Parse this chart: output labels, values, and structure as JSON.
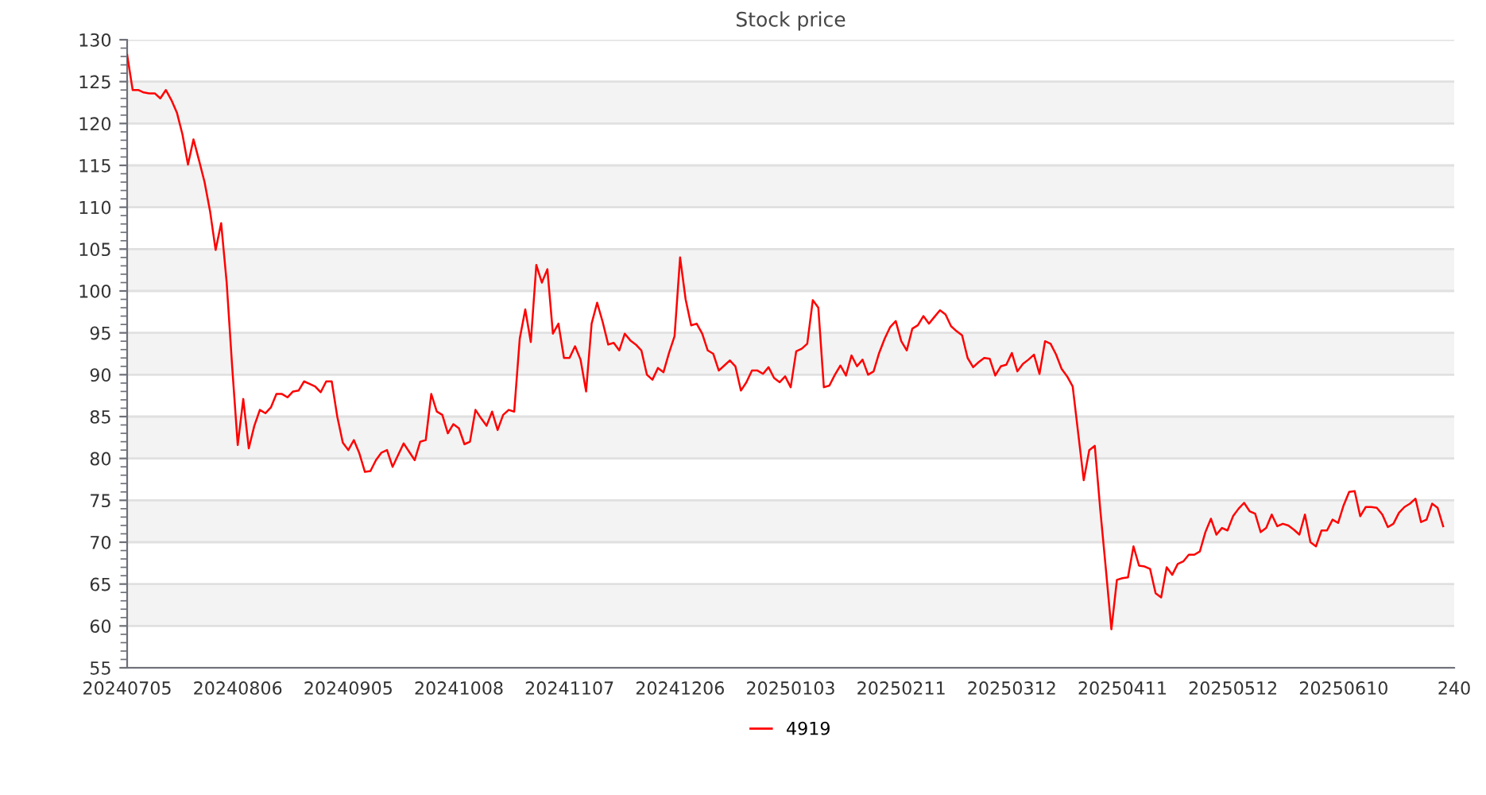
{
  "chart_data": {
    "type": "line",
    "title": "Stock price",
    "categories": [
      "20240705",
      null,
      null,
      null,
      null,
      null,
      null,
      null,
      null,
      null,
      null,
      null,
      null,
      null,
      null,
      null,
      null,
      null,
      null,
      null,
      "20240806",
      null,
      null,
      null,
      null,
      null,
      null,
      null,
      null,
      null,
      null,
      null,
      null,
      null,
      null,
      null,
      null,
      null,
      null,
      null,
      "20240905",
      null,
      null,
      null,
      null,
      null,
      null,
      null,
      null,
      null,
      null,
      null,
      null,
      null,
      null,
      null,
      null,
      null,
      null,
      null,
      "20241008",
      null,
      null,
      null,
      null,
      null,
      null,
      null,
      null,
      null,
      null,
      null,
      null,
      null,
      null,
      null,
      null,
      null,
      null,
      null,
      "20241107",
      null,
      null,
      null,
      null,
      null,
      null,
      null,
      null,
      null,
      null,
      null,
      null,
      null,
      null,
      null,
      null,
      null,
      null,
      null,
      "20241206",
      null,
      null,
      null,
      null,
      null,
      null,
      null,
      null,
      null,
      null,
      null,
      null,
      null,
      null,
      null,
      null,
      null,
      null,
      null,
      "20250103",
      null,
      null,
      null,
      null,
      null,
      null,
      null,
      null,
      null,
      null,
      null,
      null,
      null,
      null,
      null,
      null,
      null,
      null,
      null,
      "20250211",
      null,
      null,
      null,
      null,
      null,
      null,
      null,
      null,
      null,
      null,
      null,
      null,
      null,
      null,
      null,
      null,
      null,
      null,
      null,
      "20250312",
      null,
      null,
      null,
      null,
      null,
      null,
      null,
      null,
      null,
      null,
      null,
      null,
      null,
      null,
      null,
      null,
      null,
      null,
      null,
      "20250411",
      null,
      null,
      null,
      null,
      null,
      null,
      null,
      null,
      null,
      null,
      null,
      null,
      null,
      null,
      null,
      null,
      null,
      null,
      null,
      "20250512",
      null,
      null,
      null,
      null,
      null,
      null,
      null,
      null,
      null,
      null,
      null,
      null,
      null,
      null,
      null,
      null,
      null,
      null,
      null,
      "20250610",
      null,
      null,
      null,
      null,
      null,
      null,
      null,
      null,
      null,
      null,
      null,
      null,
      null,
      null,
      null,
      null,
      null,
      null,
      null,
      "240"
    ],
    "series": [
      {
        "name": "4919",
        "color": "#ff0000",
        "values": [
          128.2,
          124.0,
          124.0,
          123.7,
          123.6,
          123.6,
          123.0,
          124.0,
          122.8,
          121.3,
          118.7,
          115.1,
          118.1,
          115.6,
          113.0,
          109.5,
          104.9,
          108.1,
          101.0,
          90.9,
          81.6,
          87.1,
          81.2,
          83.9,
          85.8,
          85.4,
          86.1,
          87.7,
          87.7,
          87.3,
          88.0,
          88.1,
          89.2,
          88.9,
          88.6,
          87.9,
          89.2,
          89.2,
          85.0,
          81.9,
          81.0,
          82.2,
          80.6,
          78.4,
          78.5,
          79.8,
          80.7,
          81.0,
          79.0,
          80.4,
          81.8,
          80.8,
          79.8,
          82.0,
          82.2,
          87.7,
          85.6,
          85.2,
          83.0,
          84.1,
          83.6,
          81.7,
          82.0,
          85.8,
          84.8,
          83.9,
          85.6,
          83.4,
          85.2,
          85.8,
          85.6,
          94.3,
          97.8,
          93.9,
          103.1,
          101.0,
          102.6,
          94.9,
          96.1,
          92.0,
          92.0,
          93.4,
          91.8,
          88.0,
          96.1,
          98.6,
          96.3,
          93.6,
          93.8,
          92.9,
          94.9,
          94.1,
          93.6,
          92.9,
          90.0,
          89.4,
          90.8,
          90.3,
          92.6,
          94.6,
          104.0,
          99.0,
          95.9,
          96.1,
          94.9,
          92.9,
          92.5,
          90.5,
          91.1,
          91.7,
          91.0,
          88.1,
          89.1,
          90.5,
          90.5,
          90.1,
          90.9,
          89.6,
          89.1,
          89.8,
          88.5,
          92.8,
          93.1,
          93.7,
          98.9,
          98.0,
          88.5,
          88.7,
          90.0,
          91.1,
          89.9,
          92.3,
          91.0,
          91.8,
          90.0,
          90.4,
          92.6,
          94.3,
          95.7,
          96.4,
          94.0,
          92.9,
          95.5,
          95.9,
          97.0,
          96.1,
          96.9,
          97.7,
          97.2,
          95.8,
          95.2,
          94.7,
          92.0,
          90.9,
          91.5,
          92.0,
          91.9,
          89.9,
          91.0,
          91.2,
          92.6,
          90.4,
          91.3,
          91.8,
          92.4,
          90.1,
          94.0,
          93.7,
          92.4,
          90.7,
          89.8,
          88.6,
          83.0,
          77.4,
          81.0,
          81.5,
          73.8,
          66.8,
          59.6,
          65.5,
          65.7,
          65.8,
          69.5,
          67.2,
          67.1,
          66.8,
          63.9,
          63.4,
          67.0,
          66.1,
          67.4,
          67.7,
          68.5,
          68.5,
          68.9,
          71.2,
          72.8,
          70.9,
          71.7,
          71.4,
          73.1,
          74.0,
          74.7,
          73.7,
          73.4,
          71.2,
          71.7,
          73.3,
          71.9,
          72.2,
          72.0,
          71.5,
          70.9,
          73.3,
          70.0,
          69.5,
          71.4,
          71.4,
          72.7,
          72.3,
          74.4,
          76.0,
          76.1,
          73.1,
          74.2,
          74.2,
          74.1,
          73.3,
          71.8,
          72.2,
          73.5,
          74.2,
          74.6,
          75.2,
          72.4,
          72.7,
          74.6,
          74.1,
          71.9,
          null,
          null
        ]
      }
    ],
    "ylim": [
      55,
      130
    ],
    "yticks": [
      55,
      60,
      65,
      70,
      75,
      80,
      85,
      90,
      95,
      100,
      105,
      110,
      115,
      120,
      125,
      130
    ],
    "grid": "y",
    "legend": "bottom",
    "marker": "none",
    "line_style": "solid"
  }
}
